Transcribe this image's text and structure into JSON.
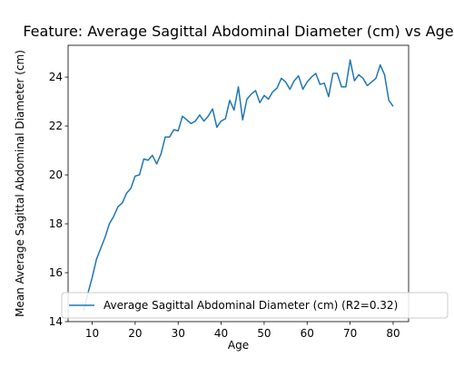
{
  "chart_data": {
    "type": "line",
    "title": "Feature: Average Sagittal Abdominal Diameter (cm) vs Age",
    "xlabel": "Age",
    "ylabel": "Mean Average Sagittal Abdominal Diameter (cm)",
    "xlim": [
      4.4,
      83.6
    ],
    "ylim": [
      14.0,
      25.3
    ],
    "xticks": [
      10,
      20,
      30,
      40,
      50,
      60,
      70,
      80
    ],
    "yticks": [
      14,
      16,
      18,
      20,
      22,
      24
    ],
    "grid": false,
    "legend_position": "lower right",
    "series": [
      {
        "name": "Average Sagittal Abdominal Diameter (cm) (R2=0.32)",
        "color": "#1f77b4",
        "x": [
          8,
          9,
          10,
          11,
          12,
          13,
          14,
          15,
          16,
          17,
          18,
          19,
          20,
          21,
          22,
          23,
          24,
          25,
          26,
          27,
          28,
          29,
          30,
          31,
          32,
          33,
          34,
          35,
          36,
          37,
          38,
          39,
          40,
          41,
          42,
          43,
          44,
          45,
          46,
          47,
          48,
          49,
          50,
          51,
          52,
          53,
          54,
          55,
          56,
          57,
          58,
          59,
          60,
          61,
          62,
          63,
          64,
          65,
          66,
          67,
          68,
          69,
          70,
          71,
          72,
          73,
          74,
          75,
          76,
          77,
          78,
          79,
          80
        ],
        "y": [
          14.45,
          15.15,
          15.8,
          16.55,
          17.0,
          17.45,
          18.0,
          18.3,
          18.7,
          18.85,
          19.25,
          19.45,
          19.95,
          20.0,
          20.65,
          20.6,
          20.8,
          20.45,
          20.85,
          21.55,
          21.55,
          21.85,
          21.8,
          22.4,
          22.25,
          22.1,
          22.2,
          22.45,
          22.2,
          22.4,
          22.7,
          21.95,
          22.2,
          22.3,
          23.05,
          22.65,
          23.6,
          22.25,
          23.1,
          23.3,
          23.45,
          22.95,
          23.25,
          23.1,
          23.4,
          23.55,
          23.95,
          23.8,
          23.5,
          23.85,
          24.05,
          23.5,
          23.8,
          24.0,
          24.15,
          23.7,
          23.75,
          23.2,
          24.15,
          24.15,
          23.6,
          23.6,
          24.7,
          23.85,
          24.1,
          23.95,
          23.65,
          23.8,
          23.95,
          24.5,
          24.1,
          23.05,
          22.8
        ]
      }
    ]
  }
}
